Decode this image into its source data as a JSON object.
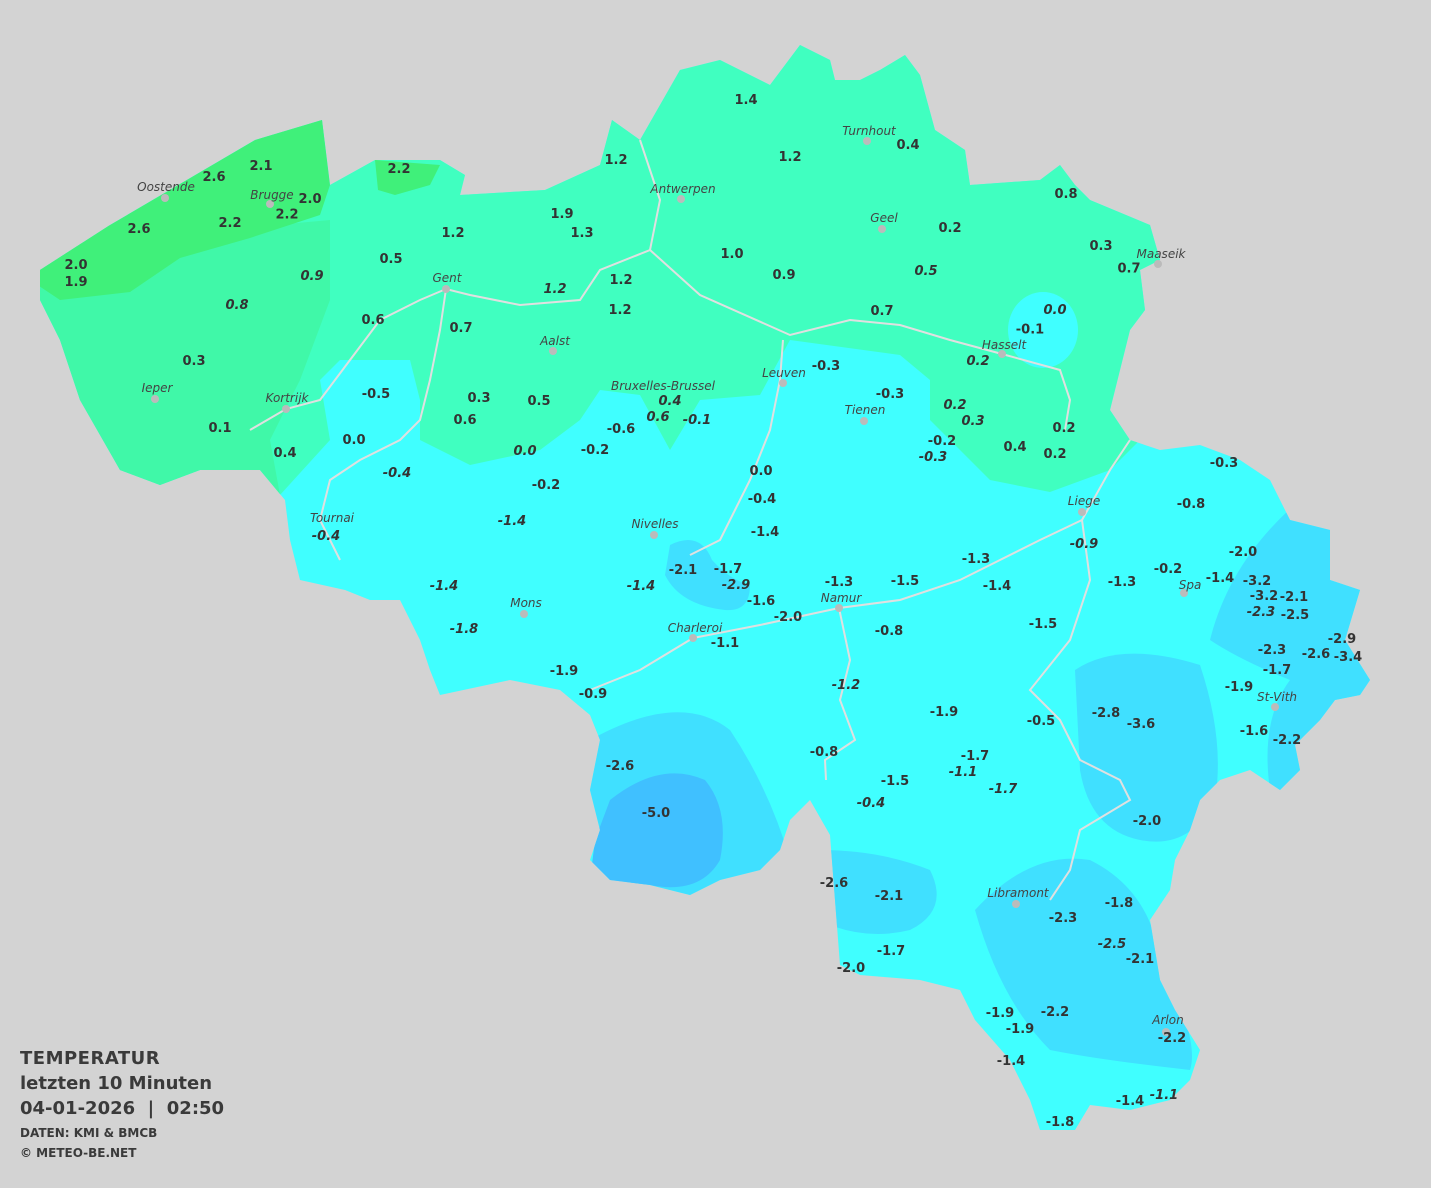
{
  "legend": {
    "title": "TEMPERATUR",
    "subtitle": "letzten 10 Minuten",
    "datetime": "04-01-2026  |  02:50",
    "source": "DATEN: KMI & BMCB",
    "copyright": "© METEO-BE.NET"
  },
  "colors": {
    "background": "#d3d3d3",
    "band_2_to_3": "#40f07a",
    "band_0_to_2": "#40ffc0",
    "band_m2_to_0": "#40ffff",
    "band_m4_to_m2": "#40e0ff",
    "band_m6_to_m4": "#40c0ff",
    "rivers": "#e0e0e0"
  },
  "cities": [
    "Turnhout",
    "Antwerpen",
    "Oostende",
    "Brugge",
    "Geel",
    "Maaseik",
    "Gent",
    "Aalst",
    "Hasselt",
    "Leuven",
    "Bruxelles-Brussel",
    "Tienen",
    "Ieper",
    "Kortrijk",
    "Liege",
    "Tournai",
    "Nivelles",
    "Spa",
    "Mons",
    "Namur",
    "Charleroi",
    "St-Vith",
    "Libramont",
    "Arlon"
  ],
  "temperatures": [
    "1.4",
    "1.2",
    "0.4",
    "1.2",
    "2.1",
    "2.6",
    "2.2",
    "2.0",
    "2.2",
    "2.6",
    "2.2",
    "1.9",
    "1.3",
    "1.2",
    "0.8",
    "0.2",
    "0.3",
    "0.7",
    "2.0",
    "1.9",
    "0.9",
    "0.5",
    "1.0",
    "0.9",
    "0.5",
    "1.2",
    "1.2",
    "1.2",
    "0.8",
    "0.6",
    "0.7",
    "0.7",
    "0.0",
    "-0.1",
    "0.2",
    "0.3",
    "-0.3",
    "-0.5",
    "-0.3",
    "0.4",
    "0.3",
    "0.5",
    "0.6",
    "-0.1",
    "0.2",
    "0.3",
    "0.1",
    "0.0",
    "0.6",
    "-0.6",
    "-0.2",
    "-0.3",
    "0.4",
    "0.2",
    "0.2",
    "0.4",
    "0.0",
    "-0.2",
    "-0.3",
    "0.0",
    "-0.4",
    "-0.2",
    "-0.4",
    "-0.8",
    "-1.4",
    "-0.4",
    "-1.4",
    "-0.9",
    "-2.0",
    "-2.1",
    "-1.7",
    "-1.3",
    "-2.9",
    "-1.6",
    "-1.3",
    "-1.5",
    "-1.4",
    "-1.3",
    "-0.2",
    "-1.4",
    "-3.2",
    "-3.2",
    "-2.1",
    "-2.3",
    "-2.5",
    "-1.4",
    "-1.4",
    "-2.0",
    "-1.8",
    "-0.8",
    "-1.5",
    "-1.1",
    "-2.3",
    "-2.9",
    "-2.6",
    "-3.4",
    "-1.9",
    "-1.7",
    "-0.9",
    "-1.2",
    "-1.9",
    "-1.9",
    "-2.8",
    "-3.6",
    "-0.5",
    "-1.6",
    "-2.2",
    "-2.6",
    "-0.8",
    "-1.7",
    "-1.1",
    "-1.5",
    "-1.7",
    "-0.4",
    "-5.0",
    "-2.0",
    "-2.6",
    "-2.1",
    "-1.8",
    "-2.3",
    "-2.5",
    "-2.1",
    "-1.7",
    "-2.0",
    "-1.9",
    "-2.2",
    "-1.9",
    "-2.2",
    "-1.4",
    "-1.4",
    "-1.1",
    "-1.8"
  ]
}
